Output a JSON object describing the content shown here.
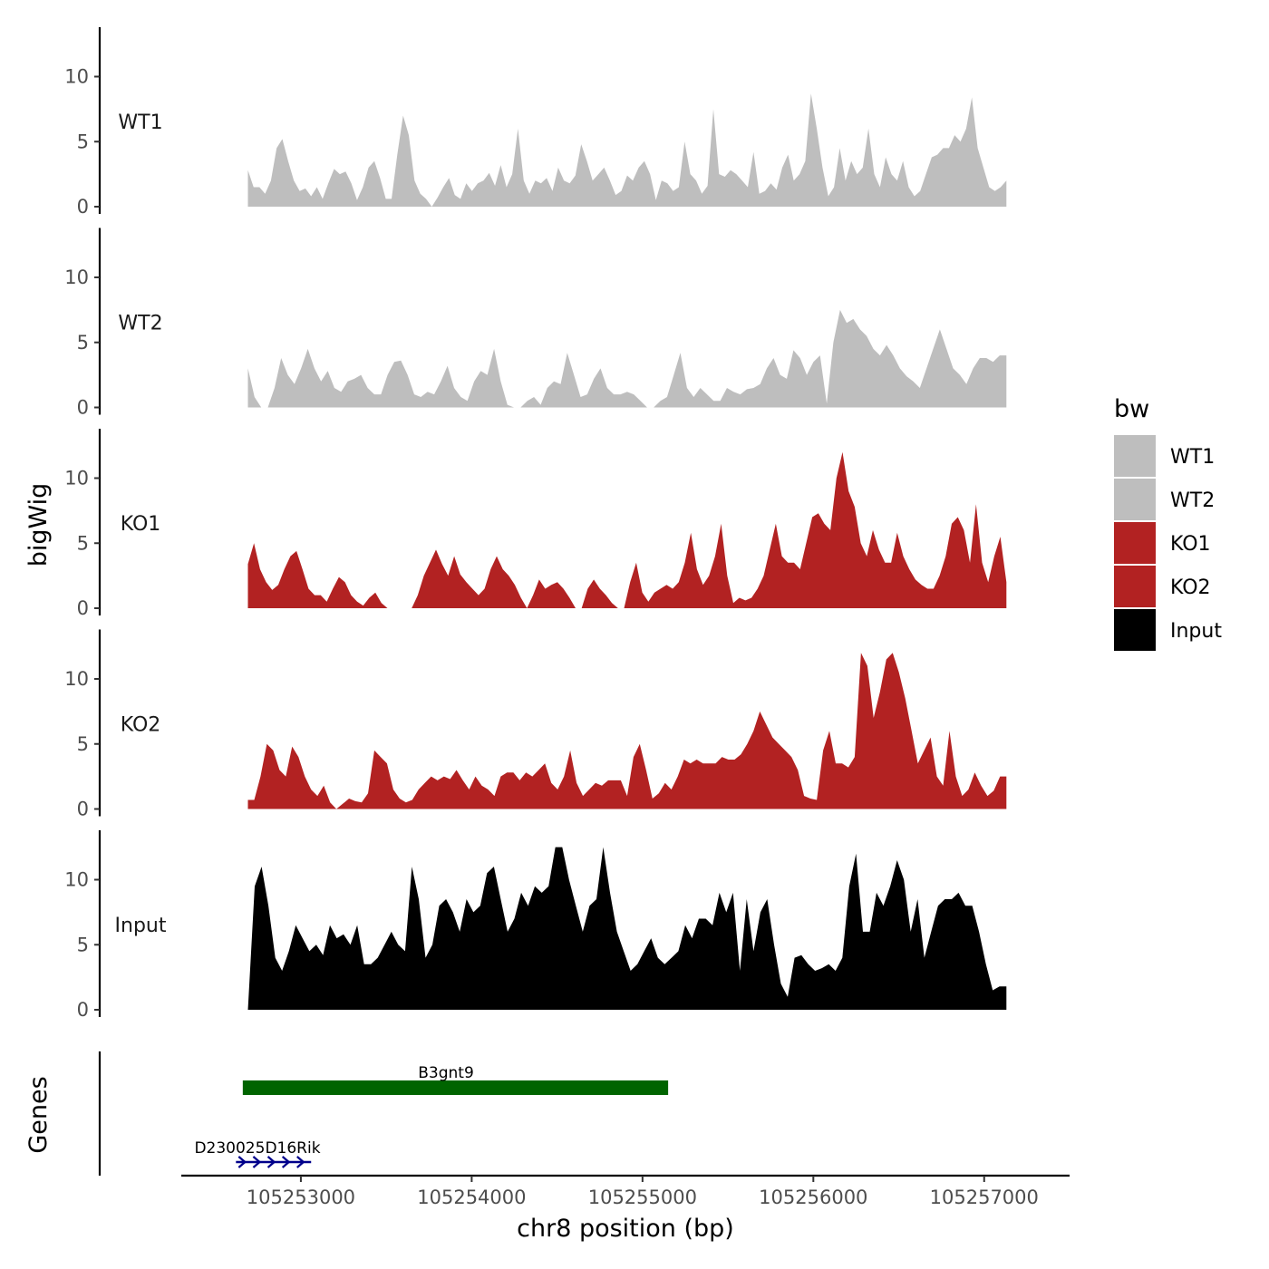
{
  "chart_data": {
    "type": "area",
    "y_title": "bigWig",
    "x_title": "chr8 position (bp)",
    "genes_title": "Genes",
    "x_range": [
      105252300,
      105257500
    ],
    "x_ticks": [
      105253000,
      105254000,
      105255000,
      105256000,
      105257000
    ],
    "x_tick_labels": [
      "105253000",
      "105254000",
      "105255000",
      "105256000",
      "105257000"
    ],
    "y_range": [
      0,
      13.5
    ],
    "y_ticks": [
      0,
      5,
      10
    ],
    "y_tick_labels": [
      "0",
      "5",
      "10"
    ],
    "signal_start": 105252690,
    "signal_end": 105257130,
    "tracks": [
      {
        "name": "WT1",
        "color": "#bebebe",
        "values": [
          2.8,
          1.5,
          1.5,
          1.0,
          2.0,
          4.5,
          5.2,
          3.5,
          2.0,
          1.2,
          1.4,
          0.8,
          1.5,
          0.6,
          1.8,
          2.9,
          2.5,
          2.7,
          1.8,
          0.5,
          1.5,
          3.0,
          3.5,
          2.2,
          0.6,
          0.6,
          4.0,
          7.0,
          5.5,
          2.0,
          1.0,
          0.6,
          0.0,
          0.7,
          1.5,
          2.2,
          0.9,
          0.6,
          1.8,
          1.2,
          1.8,
          2.0,
          2.6,
          1.6,
          3.2,
          1.5,
          2.5,
          6.0,
          2.0,
          1.0,
          2.0,
          1.8,
          2.2,
          1.2,
          3.0,
          2.0,
          1.8,
          2.4,
          4.8,
          3.5,
          2.0,
          2.5,
          3.0,
          2.0,
          0.9,
          1.2,
          2.4,
          2.0,
          3.0,
          3.5,
          2.5,
          0.5,
          2.0,
          1.8,
          1.2,
          1.5,
          5.0,
          2.5,
          2.0,
          1.0,
          1.6,
          7.5,
          2.5,
          2.3,
          2.8,
          2.5,
          2.0,
          1.5,
          4.2,
          1.0,
          1.2,
          1.8,
          1.3,
          3.0,
          4.0,
          2.0,
          2.5,
          3.5,
          8.7,
          6.0,
          3.0,
          0.8,
          1.5,
          4.5,
          2.0,
          3.5,
          2.5,
          3.0,
          6.0,
          2.5,
          1.5,
          3.8,
          2.5,
          2.0,
          3.5,
          1.5,
          0.8,
          1.2,
          2.5,
          3.8,
          4.0,
          4.5,
          4.5,
          5.5,
          5.0,
          6.0,
          8.4,
          4.5,
          3.0,
          1.5,
          1.2,
          1.5,
          2.0
        ]
      },
      {
        "name": "WT2",
        "color": "#bebebe",
        "values": [
          3.0,
          0.8,
          0.0,
          0.0,
          1.5,
          3.8,
          2.5,
          1.8,
          3.0,
          4.5,
          3.0,
          2.0,
          2.8,
          1.5,
          1.2,
          2.0,
          2.2,
          2.5,
          1.5,
          1.0,
          1.0,
          2.5,
          3.5,
          3.6,
          2.5,
          1.0,
          0.8,
          1.2,
          1.0,
          2.0,
          3.2,
          1.5,
          0.8,
          0.5,
          2.0,
          2.8,
          2.5,
          4.5,
          2.0,
          0.2,
          0.0,
          0.0,
          0.5,
          0.8,
          0.2,
          1.5,
          2.0,
          1.8,
          4.2,
          2.5,
          0.8,
          1.0,
          2.2,
          3.0,
          1.5,
          1.0,
          1.0,
          1.2,
          1.0,
          0.5,
          0.0,
          0.0,
          0.5,
          0.8,
          2.5,
          4.2,
          1.5,
          0.8,
          1.5,
          1.0,
          0.5,
          0.5,
          1.5,
          1.2,
          1.0,
          1.4,
          1.5,
          1.8,
          3.0,
          3.8,
          2.5,
          2.2,
          4.4,
          3.8,
          2.5,
          3.5,
          4.0,
          0.3,
          5.0,
          7.5,
          6.5,
          6.8,
          6.0,
          5.5,
          4.5,
          4.0,
          4.8,
          4.0,
          3.0,
          2.4,
          2.0,
          1.5,
          3.0,
          4.5,
          6.0,
          4.5,
          3.0,
          2.5,
          1.8,
          3.0,
          3.8,
          3.8,
          3.5,
          4.0,
          4.0
        ]
      },
      {
        "name": "KO1",
        "color": "#b22222",
        "values": [
          3.4,
          5.0,
          3.0,
          2.0,
          1.4,
          1.8,
          3.0,
          4.0,
          4.4,
          3.0,
          1.5,
          1.0,
          1.0,
          0.5,
          1.5,
          2.4,
          2.0,
          1.0,
          0.5,
          0.2,
          0.8,
          1.2,
          0.4,
          0.0,
          0.0,
          0.0,
          0.0,
          0.0,
          1.0,
          2.5,
          3.5,
          4.5,
          3.4,
          2.5,
          4.0,
          2.6,
          2.0,
          1.5,
          1.0,
          1.5,
          3.0,
          4.0,
          3.0,
          2.5,
          1.8,
          0.8,
          0.0,
          1.0,
          2.2,
          1.5,
          1.8,
          2.0,
          1.5,
          0.8,
          0.0,
          0.0,
          1.5,
          2.2,
          1.5,
          1.0,
          0.4,
          0.0,
          0.0,
          2.0,
          3.5,
          1.2,
          0.5,
          1.2,
          1.5,
          1.8,
          1.5,
          2.0,
          3.5,
          5.8,
          3.0,
          1.8,
          2.5,
          4.0,
          6.5,
          2.5,
          0.4,
          0.8,
          0.6,
          0.8,
          1.5,
          2.5,
          4.5,
          6.5,
          4.0,
          3.5,
          3.5,
          3.0,
          5.0,
          7.0,
          7.3,
          6.5,
          6.0,
          10.0,
          12.0,
          9.0,
          7.8,
          5.0,
          4.0,
          6.0,
          4.5,
          3.5,
          3.5,
          5.8,
          4.0,
          3.0,
          2.2,
          1.8,
          1.5,
          1.5,
          2.5,
          4.0,
          6.5,
          7.0,
          6.0,
          3.5,
          8.0,
          3.5,
          2.0,
          4.0,
          5.5,
          2.0
        ]
      },
      {
        "name": "KO2",
        "color": "#b22222",
        "values": [
          0.7,
          0.7,
          2.5,
          5.0,
          4.5,
          3.0,
          2.5,
          4.8,
          4.0,
          2.5,
          1.5,
          1.0,
          1.8,
          0.5,
          0.0,
          0.4,
          0.8,
          0.6,
          0.5,
          1.2,
          4.5,
          4.0,
          3.5,
          1.5,
          0.8,
          0.5,
          0.7,
          1.5,
          2.0,
          2.5,
          2.2,
          2.5,
          2.3,
          3.0,
          2.2,
          1.5,
          2.5,
          1.8,
          1.5,
          1.0,
          2.5,
          2.8,
          2.8,
          2.2,
          2.8,
          2.5,
          3.0,
          3.5,
          2.0,
          1.5,
          2.5,
          4.5,
          2.0,
          1.0,
          1.5,
          2.0,
          1.8,
          2.2,
          2.2,
          2.2,
          1.0,
          4.0,
          5.0,
          3.0,
          0.8,
          1.2,
          2.0,
          1.5,
          2.5,
          3.8,
          3.5,
          3.8,
          3.5,
          3.5,
          3.5,
          4.0,
          3.8,
          3.8,
          4.2,
          5.0,
          6.0,
          7.5,
          6.5,
          5.5,
          5.0,
          4.5,
          4.0,
          3.0,
          1.0,
          0.8,
          0.7,
          4.5,
          6.0,
          3.5,
          3.5,
          3.2,
          4.0,
          12.0,
          11.0,
          7.0,
          9.0,
          11.5,
          12.0,
          10.5,
          8.5,
          6.0,
          3.5,
          4.5,
          5.5,
          2.5,
          1.8,
          6.0,
          2.5,
          1.0,
          1.5,
          2.8,
          1.8,
          1.0,
          1.4,
          2.5,
          2.5
        ]
      },
      {
        "name": "Input",
        "color": "#000000",
        "values": [
          0.0,
          9.5,
          11.0,
          8.0,
          4.0,
          3.0,
          4.5,
          6.5,
          5.5,
          4.5,
          5.0,
          4.2,
          6.5,
          5.5,
          5.8,
          5.0,
          6.5,
          3.5,
          3.5,
          4.0,
          5.0,
          6.0,
          5.0,
          4.5,
          11.0,
          8.5,
          4.0,
          5.0,
          8.0,
          8.5,
          7.5,
          6.0,
          8.5,
          7.5,
          8.0,
          10.5,
          11.0,
          8.5,
          6.0,
          7.0,
          9.0,
          8.0,
          9.5,
          9.0,
          9.5,
          12.5,
          12.5,
          10.0,
          8.0,
          6.0,
          8.0,
          8.5,
          12.5,
          9.0,
          6.0,
          4.5,
          3.0,
          3.5,
          4.5,
          5.5,
          4.0,
          3.5,
          4.0,
          4.5,
          6.5,
          5.5,
          7.0,
          7.0,
          6.5,
          9.0,
          7.5,
          9.0,
          3.0,
          8.5,
          4.5,
          7.5,
          8.5,
          5.0,
          2.0,
          1.0,
          4.0,
          4.2,
          3.5,
          3.0,
          3.2,
          3.5,
          3.0,
          4.0,
          9.5,
          12.0,
          6.0,
          6.0,
          9.0,
          8.0,
          9.5,
          11.5,
          10.0,
          6.0,
          8.5,
          4.0,
          6.0,
          8.0,
          8.5,
          8.5,
          9.0,
          8.0,
          8.0,
          6.0,
          3.5,
          1.5,
          1.8,
          1.8
        ]
      }
    ],
    "genes": [
      {
        "name": "B3gnt9",
        "start": 105252660,
        "end": 105255150,
        "strand": "+",
        "color": "#006400"
      },
      {
        "name": "D230025D16Rik",
        "start": 105252620,
        "end": 105253060,
        "strand": "+",
        "color": "#00008b"
      }
    ],
    "legend": {
      "title": "bw",
      "position": "right",
      "entries": [
        {
          "label": "WT1",
          "color": "#bebebe"
        },
        {
          "label": "WT2",
          "color": "#bebebe"
        },
        {
          "label": "KO1",
          "color": "#b22222"
        },
        {
          "label": "KO2",
          "color": "#b22222"
        },
        {
          "label": "Input",
          "color": "#000000"
        }
      ]
    }
  }
}
